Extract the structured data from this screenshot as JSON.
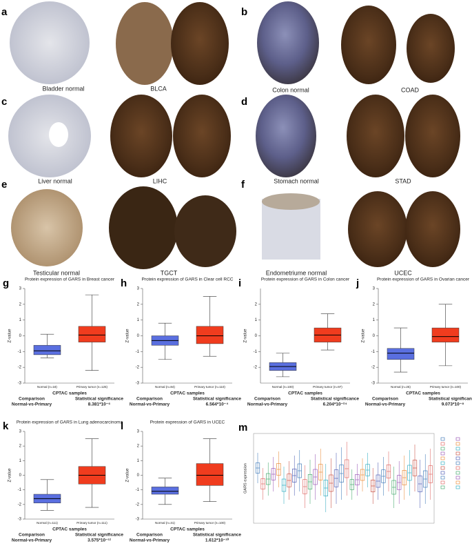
{
  "tissue_panels": [
    {
      "label": "a",
      "captions": [
        "Bladder normal",
        "BLCA"
      ]
    },
    {
      "label": "b",
      "captions": [
        "Colon normal",
        "COAD"
      ]
    },
    {
      "label": "c",
      "captions": [
        "Liver normal",
        "LIHC"
      ]
    },
    {
      "label": "d",
      "captions": [
        "Stomach normal",
        "STAD"
      ]
    },
    {
      "label": "e",
      "captions": [
        "Testicular normal",
        "TGCT"
      ]
    },
    {
      "label": "f",
      "captions": [
        "Endometriume normal",
        "UCEC"
      ]
    }
  ],
  "chart_data": [
    {
      "type": "box",
      "label": "g",
      "title": "Protein expression of GARS in Breast cancer",
      "ylabel": "Z-value",
      "xlabel": "CPTAC samples",
      "ylim": [
        -3,
        3
      ],
      "yticks": [
        -3,
        -2,
        -1,
        0,
        1,
        2,
        3
      ],
      "series": [
        {
          "name": "Normal (n=18)",
          "color": "#5a6fe0",
          "min": -1.4,
          "q1": -1.2,
          "median": -0.95,
          "q3": -0.6,
          "max": 0.1
        },
        {
          "name": "Primary tumor (n=125)",
          "color": "#f03c1e",
          "min": -2.2,
          "q1": -0.4,
          "median": 0.05,
          "q3": 0.6,
          "max": 2.6
        }
      ],
      "comparison_header": "Comparison",
      "comparison": "Normal-vs-Primary",
      "significance_header": "Statistical significance",
      "significance": "8.381*10⁻⁶"
    },
    {
      "type": "box",
      "label": "h",
      "title": "Protein expression of GARS in Clear cell RCC",
      "ylabel": "Z-value",
      "xlabel": "CPTAC samples",
      "ylim": [
        -3,
        3
      ],
      "yticks": [
        -3,
        -2,
        -1,
        0,
        1,
        2,
        3
      ],
      "series": [
        {
          "name": "Normal (n=84)",
          "color": "#5a6fe0",
          "min": -1.5,
          "q1": -0.6,
          "median": -0.3,
          "q3": 0,
          "max": 0.8
        },
        {
          "name": "Primary tumor (n=110)",
          "color": "#f03c1e",
          "min": -1.3,
          "q1": -0.5,
          "median": 0,
          "q3": 0.6,
          "max": 2.5
        }
      ],
      "comparison_header": "Comparison",
      "comparison": "Normal-vs-Primary",
      "significance_header": "Statistical significance",
      "significance": "6.564*10⁻⁴"
    },
    {
      "type": "box",
      "label": "i",
      "title": "Protein expression of GARS in Colon cancer",
      "ylabel": "Z-value",
      "xlabel": "CPTAC samples",
      "ylim": [
        -3,
        3
      ],
      "yticks": [
        -2,
        -1,
        0,
        1,
        2
      ],
      "series": [
        {
          "name": "Normal (n=100)",
          "color": "#5a6fe0",
          "min": -2.6,
          "q1": -2.2,
          "median": -1.95,
          "q3": -1.7,
          "max": -1.1
        },
        {
          "name": "Primary tumor (n=97)",
          "color": "#f03c1e",
          "min": -0.9,
          "q1": -0.4,
          "median": 0.05,
          "q3": 0.5,
          "max": 1.4
        }
      ],
      "comparison_header": "Comparison",
      "comparison": "Normal-vs-Primary",
      "significance_header": "Statistical significance",
      "significance": "6.204*10⁻²⁴"
    },
    {
      "type": "box",
      "label": "j",
      "title": "Protein expression of GARS in Ovarian cancer",
      "ylabel": "Z-value",
      "xlabel": "CPTAC samples",
      "ylim": [
        -3,
        3
      ],
      "yticks": [
        -3,
        -2,
        -1,
        0,
        1,
        2,
        3
      ],
      "series": [
        {
          "name": "Normal (n=25)",
          "color": "#5a6fe0",
          "min": -2.3,
          "q1": -1.5,
          "median": -1.1,
          "q3": -0.8,
          "max": 0.5
        },
        {
          "name": "Primary tumor (n=100)",
          "color": "#f03c1e",
          "min": -1.9,
          "q1": -0.4,
          "median": -0.05,
          "q3": 0.5,
          "max": 2.0
        }
      ],
      "comparison_header": "Comparison",
      "comparison": "Normal-vs-Primary",
      "significance_header": "Statistical significance",
      "significance": "9.073*10⁻⁸"
    },
    {
      "type": "box",
      "label": "k",
      "title": "Protein expression of GARS in Lung adenocarcinoma",
      "ylabel": "Z-value",
      "xlabel": "CPTAC samples",
      "ylim": [
        -3,
        3
      ],
      "yticks": [
        -3,
        -2,
        -1,
        0,
        1,
        2,
        3
      ],
      "series": [
        {
          "name": "Normal (n=111)",
          "color": "#5a6fe0",
          "min": -2.4,
          "q1": -1.9,
          "median": -1.6,
          "q3": -1.3,
          "max": -0.3
        },
        {
          "name": "Primary tumor (n=111)",
          "color": "#f03c1e",
          "min": -2.2,
          "q1": -0.6,
          "median": 0,
          "q3": 0.6,
          "max": 2.5
        }
      ],
      "comparison_header": "Comparison",
      "comparison": "Normal-vs-Primary",
      "significance_header": "Statistical significance",
      "significance": "3.575*10⁻¹²"
    },
    {
      "type": "box",
      "label": "l",
      "title": "Protein expression of GARS in UCEC",
      "ylabel": "Z-value",
      "xlabel": "CPTAC samples",
      "ylim": [
        -3,
        3
      ],
      "yticks": [
        -3,
        -2,
        -1,
        0,
        1,
        2,
        3
      ],
      "series": [
        {
          "name": "Normal (n=31)",
          "color": "#5a6fe0",
          "min": -2.0,
          "q1": -1.3,
          "median": -1.1,
          "q3": -0.8,
          "max": -0.2
        },
        {
          "name": "Primary tumor (n=100)",
          "color": "#f03c1e",
          "min": -1.8,
          "q1": -0.7,
          "median": 0,
          "q3": 0.8,
          "max": 2.5
        }
      ],
      "comparison_header": "Comparison",
      "comparison": "Normal-vs-Primary",
      "significance_header": "Statistical significance",
      "significance": "1.612*10⁻¹⁰"
    }
  ],
  "panel_m": {
    "label": "m",
    "ylabel": "GARS expression"
  }
}
